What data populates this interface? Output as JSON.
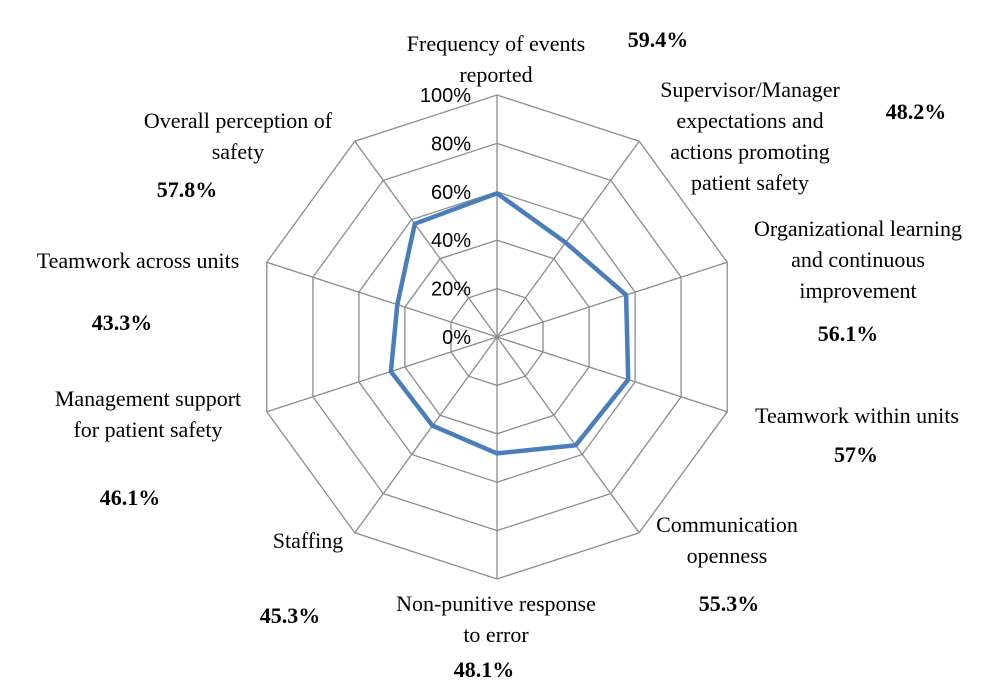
{
  "chart_data": {
    "type": "radar",
    "title": "",
    "rlim": [
      0,
      100
    ],
    "ticks": [
      "0%",
      "20%",
      "40%",
      "60%",
      "80%",
      "100%"
    ],
    "grid": true,
    "categories": [
      "Frequency of events reported",
      "Supervisor/Manager expectations and actions promoting patient safety",
      "Organizational learning and continuous improvement",
      "Teamwork within units",
      "Communication openness",
      "Non-punitive response to error",
      "Staffing",
      "Management support for patient safety",
      "Teamwork across units",
      "Overall perception of safety"
    ],
    "category_lines": [
      [
        "Frequency of events",
        "reported"
      ],
      [
        "Supervisor/Manager",
        "expectations and",
        "actions promoting",
        "patient safety"
      ],
      [
        "Organizational learning",
        "and continuous",
        "improvement"
      ],
      [
        "Teamwork within units"
      ],
      [
        "Communication",
        "openness"
      ],
      [
        "Non-punitive response",
        "to error"
      ],
      [
        "Staffing"
      ],
      [
        "Management support",
        "for patient safety"
      ],
      [
        "Teamwork across units"
      ],
      [
        "Overall perception of",
        "safety"
      ]
    ],
    "series": [
      {
        "values": [
          59.4,
          48.2,
          56.1,
          57,
          55.3,
          48.1,
          45.3,
          46.1,
          43.3,
          57.8
        ]
      }
    ],
    "value_labels": [
      "59.4%",
      "48.2%",
      "56.1%",
      "57%",
      "55.3%",
      "48.1%",
      "45.3%",
      "46.1%",
      "43.3%",
      "57.8%"
    ],
    "colors": {
      "series": "#4a7ebb",
      "grid": "#8c8c8c"
    }
  }
}
